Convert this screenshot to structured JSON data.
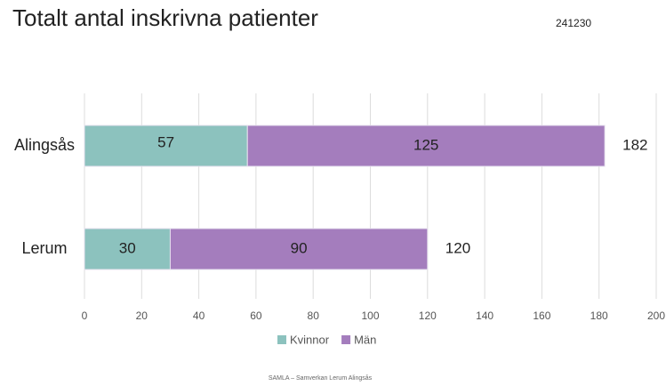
{
  "chart_data": {
    "type": "stacked_barh",
    "title": "Totalt antal inskrivna patienter",
    "date_label": "241230",
    "footer": "SAMLA – Samverkan Lerum Alingsås",
    "categories": [
      "Alingsås",
      "Lerum"
    ],
    "series": [
      {
        "name": "Kvinnor",
        "color": "#8cc2be",
        "values": [
          57,
          30
        ]
      },
      {
        "name": "Män",
        "color": "#a47dbd",
        "values": [
          125,
          90
        ]
      }
    ],
    "totals": [
      182,
      120
    ],
    "xlim": [
      0,
      200
    ],
    "xticks": [
      0,
      20,
      40,
      60,
      80,
      100,
      120,
      140,
      160,
      180,
      200
    ],
    "grid": true,
    "legend": "bottom"
  }
}
